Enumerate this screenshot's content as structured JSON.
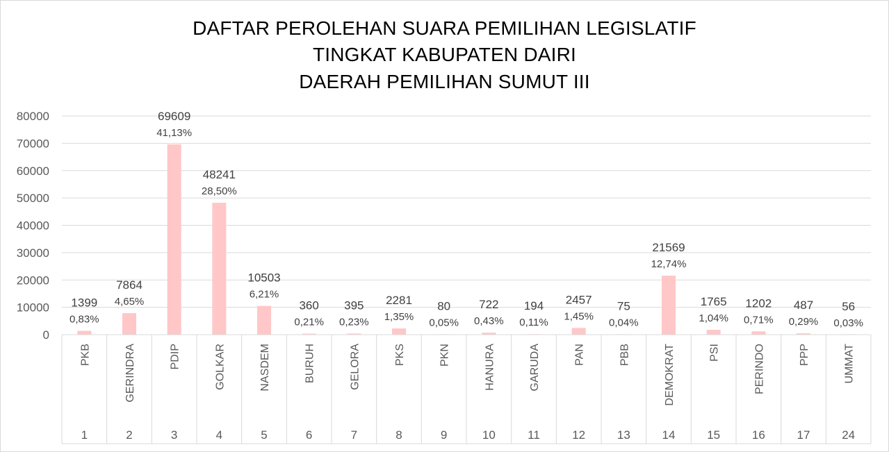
{
  "chart_data": {
    "type": "bar",
    "title_lines": [
      "DAFTAR PEROLEHAN SUARA PEMILIHAN LEGISLATIF",
      "TINGKAT KABUPATEN DAIRI",
      "DAERAH PEMILIHAN SUMUT III"
    ],
    "ylim": [
      0,
      80000
    ],
    "yticks": [
      "0",
      "10000",
      "20000",
      "30000",
      "40000",
      "50000",
      "60000",
      "70000",
      "80000"
    ],
    "grid": true,
    "bar_color": "#ffc7c7",
    "categories": [
      {
        "party": "PKB",
        "number": "1"
      },
      {
        "party": "GERINDRA",
        "number": "2"
      },
      {
        "party": "PDIP",
        "number": "3"
      },
      {
        "party": "GOLKAR",
        "number": "4"
      },
      {
        "party": "NASDEM",
        "number": "5"
      },
      {
        "party": "BURUH",
        "number": "6"
      },
      {
        "party": "GELORA",
        "number": "7"
      },
      {
        "party": "PKS",
        "number": "8"
      },
      {
        "party": "PKN",
        "number": "9"
      },
      {
        "party": "HANURA",
        "number": "10"
      },
      {
        "party": "GARUDA",
        "number": "11"
      },
      {
        "party": "PAN",
        "number": "12"
      },
      {
        "party": "PBB",
        "number": "13"
      },
      {
        "party": "DEMOKRAT",
        "number": "14"
      },
      {
        "party": "PSI",
        "number": "15"
      },
      {
        "party": "PERINDO",
        "number": "16"
      },
      {
        "party": "PPP",
        "number": "17"
      },
      {
        "party": "UMMAT",
        "number": "24"
      }
    ],
    "values": [
      1399,
      7864,
      69609,
      48241,
      10503,
      360,
      395,
      2281,
      80,
      722,
      194,
      2457,
      75,
      21569,
      1765,
      1202,
      487,
      56
    ],
    "value_labels": [
      "1399",
      "7864",
      "69609",
      "48241",
      "10503",
      "360",
      "395",
      "2281",
      "80",
      "722",
      "194",
      "2457",
      "75",
      "21569",
      "1765",
      "1202",
      "487",
      "56"
    ],
    "percent_labels": [
      "0,83%",
      "4,65%",
      "41,13%",
      "28,50%",
      "6,21%",
      "0,21%",
      "0,23%",
      "1,35%",
      "0,05%",
      "0,43%",
      "0,11%",
      "1,45%",
      "0,04%",
      "12,74%",
      "1,04%",
      "0,71%",
      "0,29%",
      "0,03%"
    ]
  }
}
